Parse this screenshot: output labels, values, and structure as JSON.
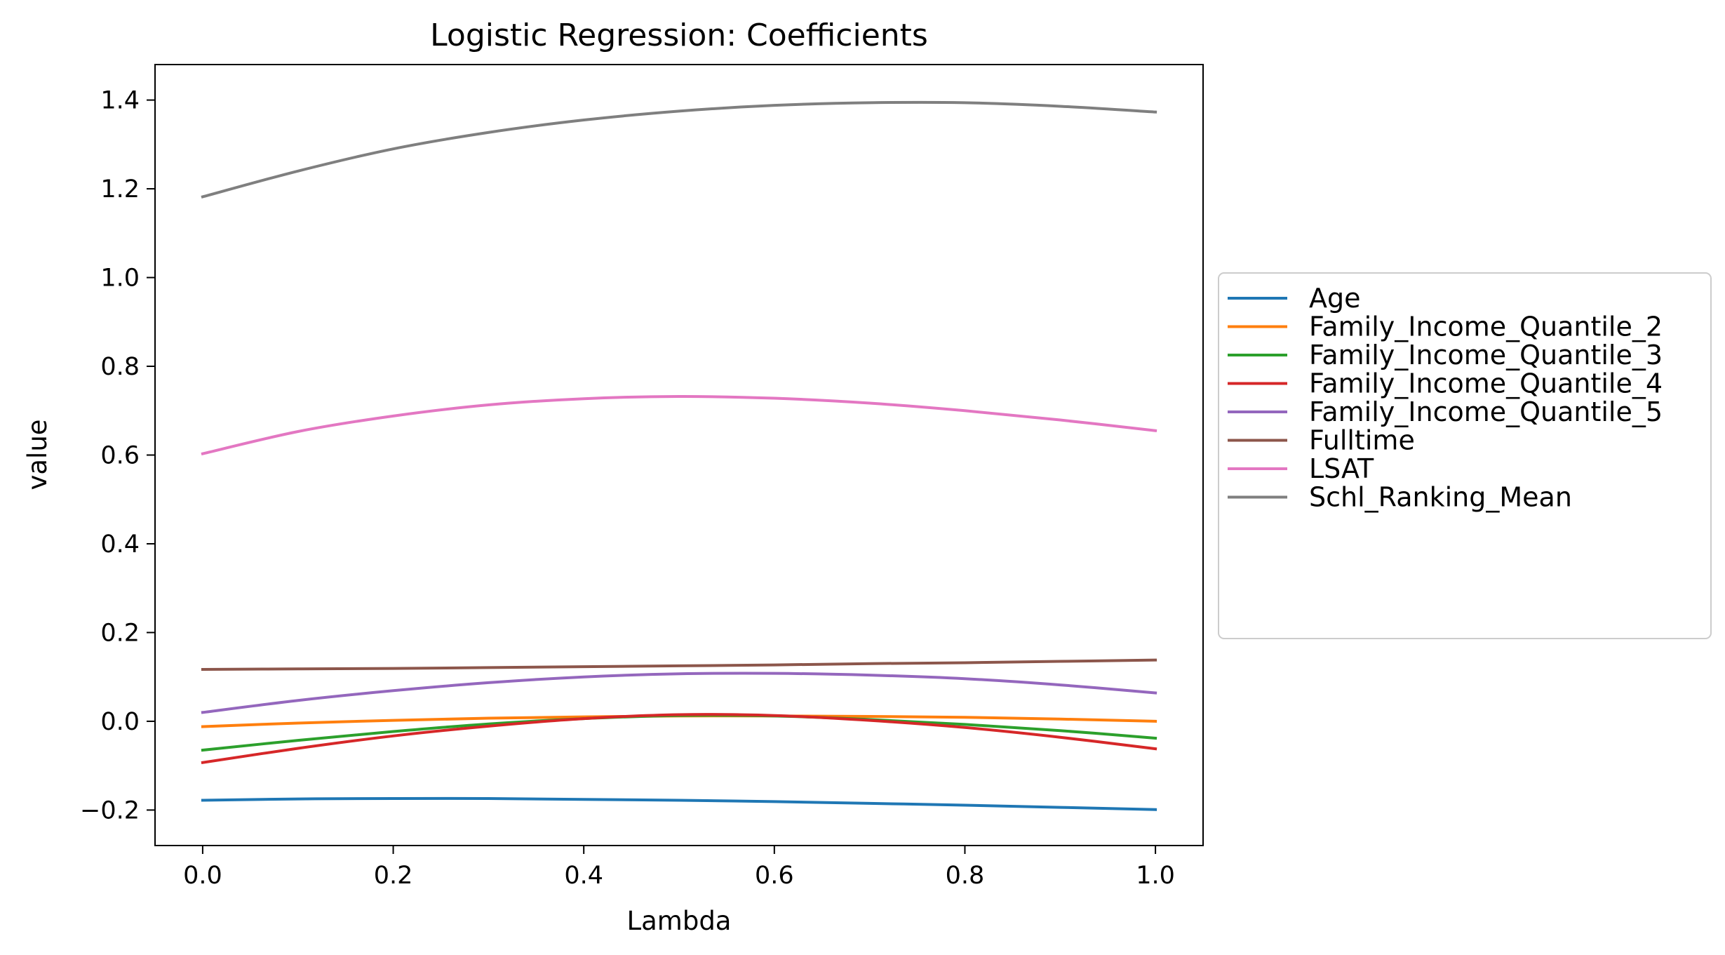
{
  "chart_data": {
    "type": "line",
    "title": "Logistic Regression: Coefficients",
    "xlabel": "Lambda",
    "ylabel": "value",
    "xlim": [
      -0.05,
      1.05
    ],
    "ylim": [
      -0.28,
      1.48
    ],
    "x_ticks": [
      0.0,
      0.2,
      0.4,
      0.6,
      0.8,
      1.0
    ],
    "x_tick_labels": [
      "0.0",
      "0.2",
      "0.4",
      "0.6",
      "0.8",
      "1.0"
    ],
    "y_ticks": [
      -0.2,
      0.0,
      0.2,
      0.4,
      0.6,
      0.8,
      1.0,
      1.2,
      1.4
    ],
    "y_tick_labels": [
      "−0.2",
      "0.0",
      "0.2",
      "0.4",
      "0.6",
      "0.8",
      "1.0",
      "1.2",
      "1.4"
    ],
    "grid": false,
    "legend_position": "outside-right",
    "x": [
      0.0,
      0.1,
      0.2,
      0.3,
      0.4,
      0.5,
      0.6,
      0.7,
      0.8,
      0.9,
      1.0
    ],
    "series": [
      {
        "name": "Age",
        "color": "#1f77b4",
        "values": [
          -0.178,
          -0.175,
          -0.174,
          -0.174,
          -0.176,
          -0.178,
          -0.181,
          -0.185,
          -0.189,
          -0.194,
          -0.199
        ]
      },
      {
        "name": "Family_Income_Quantile_2",
        "color": "#ff7f0e",
        "values": [
          -0.012,
          -0.004,
          0.002,
          0.007,
          0.01,
          0.012,
          0.012,
          0.011,
          0.009,
          0.005,
          0.0
        ]
      },
      {
        "name": "Family_Income_Quantile_3",
        "color": "#2ca02c",
        "values": [
          -0.065,
          -0.043,
          -0.023,
          -0.006,
          0.006,
          0.013,
          0.012,
          0.004,
          -0.007,
          -0.021,
          -0.038
        ]
      },
      {
        "name": "Family_Income_Quantile_4",
        "color": "#d62728",
        "values": [
          -0.093,
          -0.061,
          -0.033,
          -0.011,
          0.006,
          0.015,
          0.013,
          0.002,
          -0.014,
          -0.036,
          -0.062
        ]
      },
      {
        "name": "Family_Income_Quantile_5",
        "color": "#9467bd",
        "values": [
          0.02,
          0.047,
          0.069,
          0.087,
          0.1,
          0.107,
          0.108,
          0.104,
          0.096,
          0.082,
          0.064
        ]
      },
      {
        "name": "Fulltime",
        "color": "#8c564b",
        "values": [
          0.117,
          0.118,
          0.119,
          0.121,
          0.123,
          0.125,
          0.127,
          0.13,
          0.132,
          0.135,
          0.138
        ]
      },
      {
        "name": "LSAT",
        "color": "#e377c2",
        "values": [
          0.603,
          0.653,
          0.688,
          0.713,
          0.727,
          0.732,
          0.728,
          0.717,
          0.7,
          0.679,
          0.655
        ]
      },
      {
        "name": "Schl_Ranking_Mean",
        "color": "#7f7f7f",
        "values": [
          1.182,
          1.24,
          1.29,
          1.327,
          1.355,
          1.375,
          1.388,
          1.394,
          1.394,
          1.386,
          1.373
        ]
      }
    ]
  }
}
